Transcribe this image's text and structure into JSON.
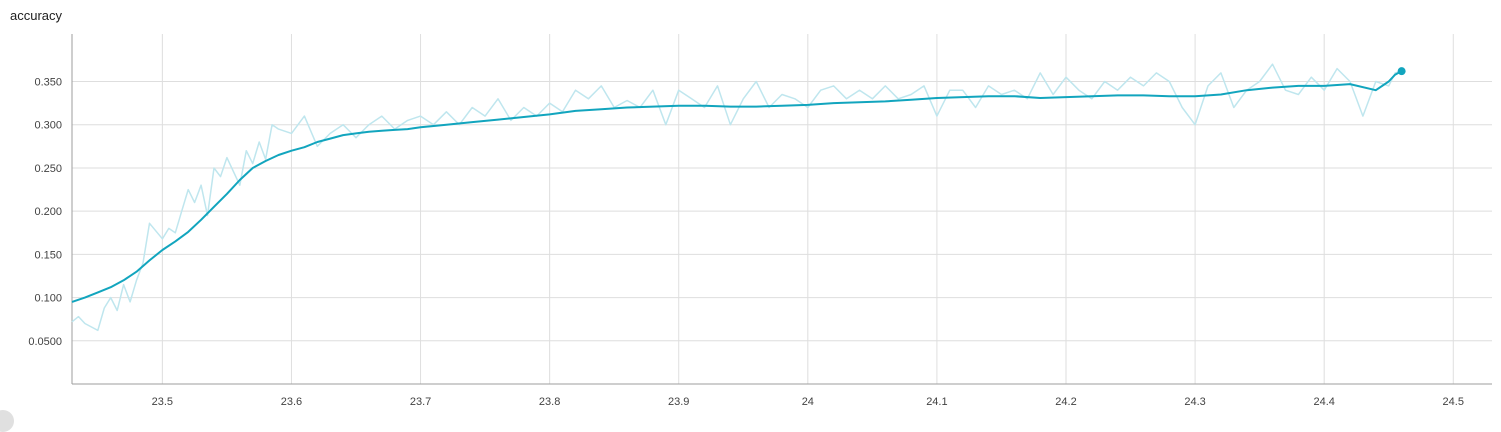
{
  "card": {
    "title": "accuracy"
  },
  "colors": {
    "smoothed": "#12a5be",
    "raw": "#bfe6ee",
    "grid": "#dedede",
    "axis": "#9e9e9e"
  },
  "chart_data": {
    "type": "line",
    "title": "accuracy",
    "xlabel": "",
    "ylabel": "",
    "xlim": [
      23.43,
      24.53
    ],
    "ylim": [
      0.0,
      0.405
    ],
    "x_ticks": [
      "23.5",
      "23.6",
      "23.7",
      "23.8",
      "23.9",
      "24",
      "24.1",
      "24.2",
      "24.3",
      "24.4",
      "24.5"
    ],
    "y_ticks": [
      "0.0500",
      "0.100",
      "0.150",
      "0.200",
      "0.250",
      "0.300",
      "0.350"
    ],
    "grid": true,
    "series": [
      {
        "role": "raw",
        "x": [
          23.43,
          23.435,
          23.44,
          23.45,
          23.455,
          23.46,
          23.465,
          23.47,
          23.475,
          23.48,
          23.485,
          23.49,
          23.5,
          23.505,
          23.51,
          23.515,
          23.52,
          23.525,
          23.53,
          23.535,
          23.54,
          23.545,
          23.55,
          23.56,
          23.565,
          23.57,
          23.575,
          23.58,
          23.585,
          23.59,
          23.6,
          23.61,
          23.62,
          23.63,
          23.64,
          23.65,
          23.66,
          23.67,
          23.68,
          23.69,
          23.7,
          23.71,
          23.72,
          23.73,
          23.74,
          23.75,
          23.76,
          23.77,
          23.78,
          23.79,
          23.8,
          23.81,
          23.82,
          23.83,
          23.84,
          23.85,
          23.86,
          23.87,
          23.88,
          23.89,
          23.9,
          23.91,
          23.92,
          23.93,
          23.94,
          23.95,
          23.96,
          23.97,
          23.98,
          23.99,
          24.0,
          24.01,
          24.02,
          24.03,
          24.04,
          24.05,
          24.06,
          24.07,
          24.08,
          24.09,
          24.1,
          24.11,
          24.12,
          24.13,
          24.14,
          24.15,
          24.16,
          24.17,
          24.18,
          24.19,
          24.2,
          24.21,
          24.22,
          24.23,
          24.24,
          24.25,
          24.26,
          24.27,
          24.28,
          24.29,
          24.3,
          24.31,
          24.32,
          24.33,
          24.34,
          24.35,
          24.36,
          24.37,
          24.38,
          24.39,
          24.4,
          24.41,
          24.42,
          24.43,
          24.44,
          24.45,
          24.455,
          24.46
        ],
        "y": [
          0.072,
          0.078,
          0.07,
          0.062,
          0.088,
          0.1,
          0.085,
          0.115,
          0.095,
          0.12,
          0.14,
          0.186,
          0.168,
          0.18,
          0.175,
          0.2,
          0.225,
          0.21,
          0.23,
          0.195,
          0.25,
          0.24,
          0.262,
          0.23,
          0.27,
          0.255,
          0.28,
          0.26,
          0.3,
          0.295,
          0.29,
          0.31,
          0.275,
          0.29,
          0.3,
          0.285,
          0.3,
          0.31,
          0.295,
          0.305,
          0.31,
          0.3,
          0.315,
          0.3,
          0.32,
          0.31,
          0.33,
          0.305,
          0.32,
          0.31,
          0.325,
          0.315,
          0.34,
          0.33,
          0.345,
          0.32,
          0.328,
          0.32,
          0.34,
          0.3,
          0.34,
          0.33,
          0.32,
          0.345,
          0.3,
          0.33,
          0.35,
          0.32,
          0.335,
          0.33,
          0.32,
          0.34,
          0.345,
          0.33,
          0.34,
          0.33,
          0.345,
          0.33,
          0.335,
          0.345,
          0.31,
          0.34,
          0.34,
          0.32,
          0.345,
          0.335,
          0.34,
          0.33,
          0.36,
          0.335,
          0.355,
          0.34,
          0.33,
          0.35,
          0.34,
          0.355,
          0.345,
          0.36,
          0.35,
          0.32,
          0.3,
          0.345,
          0.36,
          0.32,
          0.34,
          0.35,
          0.37,
          0.34,
          0.335,
          0.355,
          0.34,
          0.365,
          0.35,
          0.31,
          0.35,
          0.345,
          0.36,
          0.362
        ],
        "color": "#bfe6ee"
      },
      {
        "role": "smoothed",
        "x": [
          23.43,
          23.44,
          23.45,
          23.46,
          23.47,
          23.48,
          23.49,
          23.5,
          23.51,
          23.52,
          23.53,
          23.54,
          23.55,
          23.56,
          23.57,
          23.58,
          23.59,
          23.6,
          23.61,
          23.62,
          23.63,
          23.64,
          23.65,
          23.66,
          23.67,
          23.68,
          23.69,
          23.7,
          23.72,
          23.74,
          23.76,
          23.78,
          23.8,
          23.82,
          23.84,
          23.86,
          23.88,
          23.9,
          23.92,
          23.94,
          23.96,
          23.98,
          24.0,
          24.02,
          24.04,
          24.06,
          24.08,
          24.1,
          24.12,
          24.14,
          24.16,
          24.18,
          24.2,
          24.22,
          24.24,
          24.26,
          24.28,
          24.3,
          24.32,
          24.34,
          24.36,
          24.38,
          24.4,
          24.42,
          24.44,
          24.45,
          24.455,
          24.46
        ],
        "y": [
          0.095,
          0.1,
          0.106,
          0.112,
          0.12,
          0.13,
          0.143,
          0.155,
          0.165,
          0.176,
          0.19,
          0.205,
          0.22,
          0.236,
          0.25,
          0.258,
          0.265,
          0.27,
          0.274,
          0.28,
          0.284,
          0.288,
          0.29,
          0.292,
          0.293,
          0.294,
          0.295,
          0.297,
          0.3,
          0.303,
          0.306,
          0.309,
          0.312,
          0.316,
          0.318,
          0.32,
          0.321,
          0.322,
          0.322,
          0.321,
          0.321,
          0.322,
          0.323,
          0.325,
          0.326,
          0.327,
          0.329,
          0.331,
          0.332,
          0.333,
          0.333,
          0.331,
          0.332,
          0.333,
          0.334,
          0.334,
          0.333,
          0.333,
          0.335,
          0.34,
          0.343,
          0.345,
          0.345,
          0.347,
          0.34,
          0.35,
          0.358,
          0.362
        ],
        "color": "#12a5be"
      }
    ]
  }
}
